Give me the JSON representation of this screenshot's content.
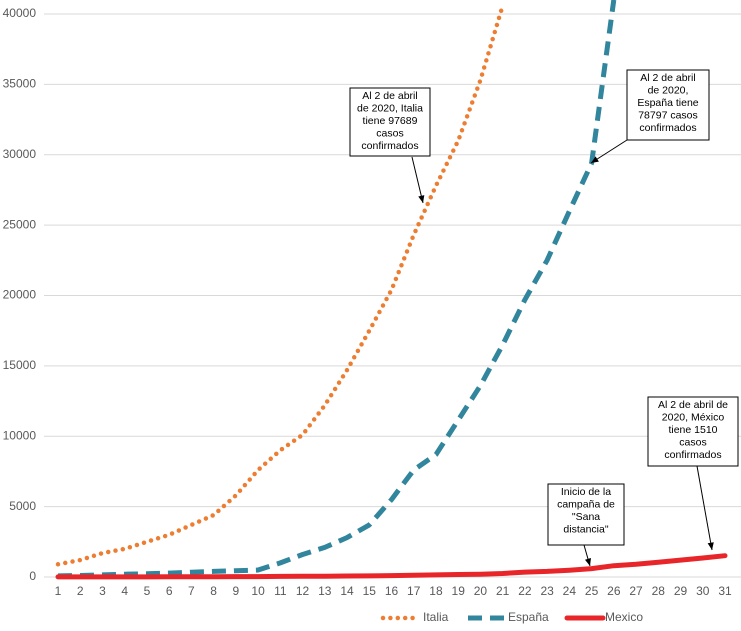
{
  "chart_data": {
    "type": "line",
    "categories": [
      "1",
      "2",
      "3",
      "4",
      "5",
      "6",
      "7",
      "8",
      "9",
      "10",
      "11",
      "12",
      "13",
      "14",
      "15",
      "16",
      "17",
      "18",
      "19",
      "20",
      "21",
      "22",
      "23",
      "24",
      "25",
      "26",
      "27",
      "28",
      "29",
      "30",
      "31"
    ],
    "series": [
      {
        "name": "Italia",
        "color": "#ed7d31",
        "style": "dotted",
        "values": [
          900,
          1200,
          1700,
          2000,
          2500,
          3000,
          3700,
          4400,
          5800,
          7600,
          9000,
          10100,
          12200,
          14700,
          17500,
          20400,
          24300,
          27800,
          31000,
          35300,
          40600,
          null,
          null,
          null,
          null,
          null,
          null,
          null,
          null,
          null,
          null
        ]
      },
      {
        "name": "España",
        "color": "#31859c",
        "style": "dashed",
        "values": [
          80,
          110,
          150,
          200,
          230,
          280,
          340,
          400,
          450,
          500,
          1000,
          1600,
          2100,
          2800,
          3700,
          5500,
          7600,
          8700,
          11150,
          13600,
          16500,
          19700,
          22500,
          26000,
          29400,
          41000,
          null,
          null,
          null,
          null,
          null
        ]
      },
      {
        "name": "Mexico",
        "color": "#e8262a",
        "style": "solid",
        "values": [
          5,
          6,
          7,
          8,
          10,
          12,
          15,
          20,
          25,
          30,
          40,
          50,
          60,
          70,
          80,
          100,
          120,
          150,
          180,
          200,
          250,
          350,
          400,
          480,
          600,
          800,
          900,
          1050,
          1200,
          1350,
          1510
        ]
      }
    ],
    "ylim": [
      0,
      40000
    ],
    "yticks": [
      0,
      5000,
      10000,
      15000,
      20000,
      25000,
      30000,
      35000,
      40000
    ],
    "grid": true,
    "legend": "bottom",
    "annotations": [
      {
        "lines": [
          "Al 2 de abril",
          "de 2020, Italia",
          "tiene 97689",
          "casos",
          "confirmados"
        ]
      },
      {
        "lines": [
          "Al 2 de abril",
          "de 2020,",
          "España tiene",
          "78797 casos",
          "confirmados"
        ]
      },
      {
        "lines": [
          "Al 2 de abril de",
          "2020, México",
          "tiene 1510",
          "casos",
          "confirmados"
        ]
      },
      {
        "lines": [
          "Inicio de la",
          "campaña de",
          "\"Sana",
          "distancia\""
        ]
      }
    ]
  }
}
